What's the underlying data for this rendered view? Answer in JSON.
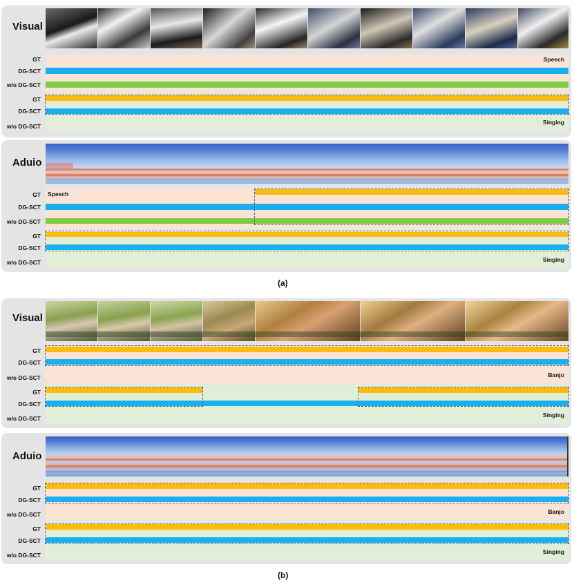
{
  "caption_a": "(a)",
  "caption_b": "(b)",
  "panel_a_visual": {
    "title": "Visual",
    "rows": [
      {
        "label": "GT",
        "class_label": "Speech"
      },
      {
        "label": "DG-SCT"
      },
      {
        "label": "w/o DG-SCT"
      },
      {
        "label": "GT"
      },
      {
        "label": "DG-SCT"
      },
      {
        "label": "w/o DG-SCT",
        "class_label": "Singing"
      }
    ]
  },
  "panel_a_audio": {
    "title": "Aduio",
    "rows": [
      {
        "label": "GT",
        "class_label": "Speech"
      },
      {
        "label": "DG-SCT"
      },
      {
        "label": "w/o DG-SCT"
      },
      {
        "label": "GT"
      },
      {
        "label": "DG-SCT"
      },
      {
        "label": "w/o DG-SCT",
        "class_label": "Singing"
      }
    ]
  },
  "panel_b_visual": {
    "title": "Visual",
    "rows": [
      {
        "label": "GT"
      },
      {
        "label": "DG-SCT"
      },
      {
        "label": "w/o DG-SCT",
        "class_label": "Banjo"
      },
      {
        "label": "GT"
      },
      {
        "label": "DG-SCT"
      },
      {
        "label": "w/o DG-SCT",
        "class_label": "Singing"
      }
    ]
  },
  "panel_b_audio": {
    "title": "Aduio",
    "rows": [
      {
        "label": "GT"
      },
      {
        "label": "DG-SCT"
      },
      {
        "label": "w/o DG-SCT",
        "class_label": "Banjo"
      },
      {
        "label": "GT"
      },
      {
        "label": "DG-SCT"
      },
      {
        "label": "w/o DG-SCT",
        "class_label": "Singing"
      }
    ]
  },
  "colors": {
    "gt": "#fbbb10",
    "dg_sct": "#1ab0ee",
    "wo_dg_sct": "#7ecb45",
    "speech_or_banjo_background": "#fbe3d6",
    "singing_background": "#e1eed8",
    "panel": "#e4e4e4"
  }
}
